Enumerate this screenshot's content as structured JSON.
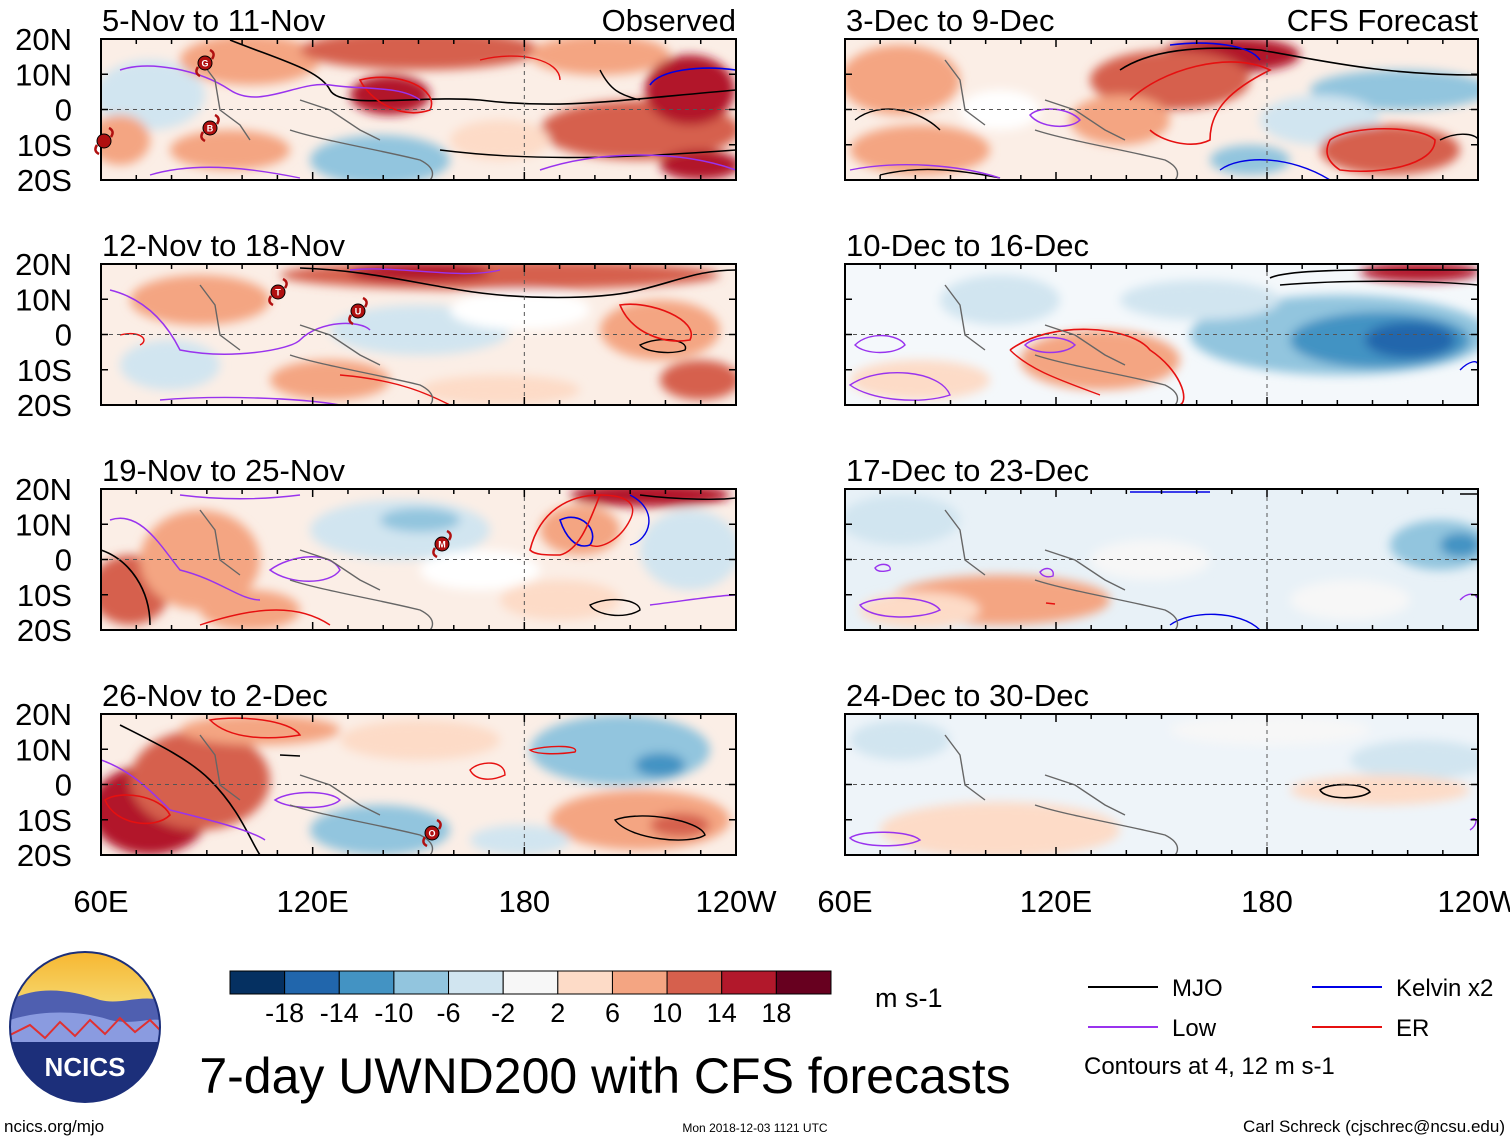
{
  "figure": {
    "title": "7-day UWND200 with CFS forecasts",
    "observed_label": "Observed",
    "forecast_label": "CFS Forecast",
    "y_ticks": [
      "20N",
      "10N",
      "0",
      "10S",
      "20S"
    ],
    "x_ticks": [
      "60E",
      "120E",
      "180",
      "120W"
    ],
    "observed_panels": [
      {
        "title": "5-Nov to 11-Nov",
        "storms": [
          "G",
          "B",
          ""
        ]
      },
      {
        "title": "12-Nov to 18-Nov",
        "storms": [
          "T",
          "U"
        ]
      },
      {
        "title": "19-Nov to 25-Nov",
        "storms": [
          "M"
        ]
      },
      {
        "title": "26-Nov to 2-Dec",
        "storms": [
          "O"
        ]
      }
    ],
    "forecast_panels": [
      {
        "title": "3-Dec to 9-Dec"
      },
      {
        "title": "10-Dec to 16-Dec"
      },
      {
        "title": "17-Dec to 23-Dec"
      },
      {
        "title": "24-Dec to 30-Dec"
      }
    ]
  },
  "colorbar": {
    "labels": [
      "-18",
      "-14",
      "-10",
      "-6",
      "-2",
      "2",
      "6",
      "10",
      "14",
      "18"
    ],
    "colors": [
      "#053061",
      "#2166ac",
      "#4393c3",
      "#92c5de",
      "#d1e5f0",
      "#f7f7f7",
      "#fddbc7",
      "#f4a582",
      "#d6604d",
      "#b2182b",
      "#67001f"
    ],
    "units": "m s-1"
  },
  "legend": {
    "items": [
      {
        "label": "MJO",
        "color": "#000000"
      },
      {
        "label": "Kelvin x2",
        "color": "#0000e6"
      },
      {
        "label": "Low",
        "color": "#9933ee"
      },
      {
        "label": "ER",
        "color": "#e61010"
      }
    ],
    "note": "Contours at 4, 12 m s-1"
  },
  "footer": {
    "logo_text": "NCICS",
    "url": "ncics.org/mjo",
    "timestamp": "Mon 2018-12-03 1121 UTC",
    "credit": "Carl Schreck (cjschrec@ncsu.edu)"
  }
}
